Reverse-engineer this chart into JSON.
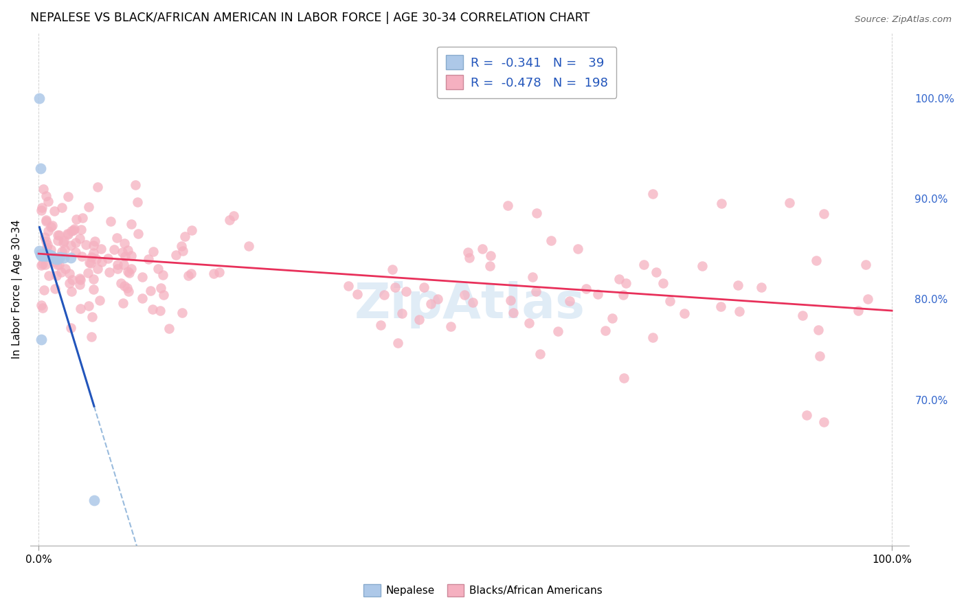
{
  "title": "NEPALESE VS BLACK/AFRICAN AMERICAN IN LABOR FORCE | AGE 30-34 CORRELATION CHART",
  "source": "Source: ZipAtlas.com",
  "ylabel": "In Labor Force | Age 30-34",
  "legend_r_blue": "-0.341",
  "legend_n_blue": "39",
  "legend_r_pink": "-0.478",
  "legend_n_pink": "198",
  "blue_color": "#adc8e8",
  "pink_color": "#f5b0c0",
  "blue_line_color": "#2255bb",
  "pink_line_color": "#e8305a",
  "dashed_line_color": "#99bbdd",
  "watermark_color": "#c8ddf0",
  "background_color": "#ffffff",
  "grid_color": "#cccccc",
  "ytick_color": "#3366cc",
  "xlim": [
    -0.01,
    1.02
  ],
  "ylim": [
    0.555,
    1.065
  ],
  "yticks": [
    0.7,
    0.8,
    0.9,
    1.0
  ],
  "ytick_labels": [
    "70.0%",
    "80.0%",
    "90.0%",
    "100.0%"
  ],
  "xtick_labels": [
    "0.0%",
    "100.0%"
  ],
  "xtick_vals": [
    0.0,
    1.0
  ],
  "legend_label_blue": "Nepalese",
  "legend_label_pink": "Blacks/African Americans",
  "scatter_size_blue": 130,
  "scatter_size_pink": 110
}
